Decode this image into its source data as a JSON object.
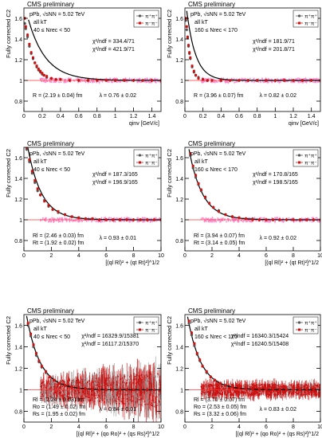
{
  "chart_data": [
    {
      "type": "scatter",
      "header": "CMS preliminary",
      "system": "pPb, √sNN = 5.02 TeV",
      "kt_label": "all kT",
      "mult_label": "40 ≤ Nrec < 50",
      "ylabel": "Fully corrected C2",
      "xlabel": "qinv [GeV/c]",
      "xlim": [
        0,
        1.5
      ],
      "ylim": [
        0.7,
        1.7
      ],
      "xticks": [
        "0",
        "0.2",
        "0.4",
        "0.6",
        "0.8",
        "1",
        "1.2",
        "1.4"
      ],
      "yticks": [
        "0.8",
        "1",
        "1.2",
        "1.4",
        "1.6"
      ],
      "chi2": [
        "χ²/ndf = 334.4/71",
        "χ²/ndf = 421.9/71"
      ],
      "radii": [
        "R = (2.19 ± 0.04) fm"
      ],
      "lambda": "λ = 0.76 ± 0.02",
      "legend": [
        "π⁺π⁺",
        "π⁻π⁻"
      ],
      "fit": {
        "form": "exp",
        "lambda": 0.76,
        "scale": 5.2,
        "cutoff": 0.05
      },
      "series_x": [
        0.01,
        0.02,
        0.04,
        0.06,
        0.08,
        0.1,
        0.12,
        0.14,
        0.16,
        0.18,
        0.2,
        0.22,
        0.25,
        0.3,
        0.35,
        0.4,
        0.5,
        0.6,
        0.7,
        0.8,
        0.9,
        1.0,
        1.1,
        1.2,
        1.3,
        1.4,
        1.5
      ],
      "series": [
        {
          "name": "π⁺π⁺",
          "values": [
            1.55,
            1.5,
            1.42,
            1.33,
            1.26,
            1.21,
            1.17,
            1.13,
            1.1,
            1.08,
            1.06,
            1.05,
            1.03,
            1.02,
            1.01,
            1.01,
            1.0,
            1.0,
            1.0,
            1.0,
            1.0,
            1.0,
            1.0,
            1.0,
            1.0,
            1.0,
            1.0
          ]
        },
        {
          "name": "π⁻π⁻",
          "values": [
            1.6,
            1.52,
            1.44,
            1.35,
            1.27,
            1.22,
            1.17,
            1.14,
            1.11,
            1.09,
            1.07,
            1.05,
            1.04,
            1.02,
            1.01,
            1.01,
            1.0,
            1.0,
            1.0,
            1.0,
            1.0,
            1.0,
            1.0,
            1.0,
            1.0,
            1.0,
            1.0
          ]
        }
      ]
    },
    {
      "type": "scatter",
      "header": "CMS preliminary",
      "system": "pPb, √sNN = 5.02 TeV",
      "kt_label": "all kT",
      "mult_label": "160 ≤ Nrec < 170",
      "ylabel": "Fully corrected C2",
      "xlabel": "qinv [GeV/c]",
      "xlim": [
        0,
        1.5
      ],
      "ylim": [
        0.7,
        1.7
      ],
      "xticks": [
        "0",
        "0.2",
        "0.4",
        "0.6",
        "0.8",
        "1",
        "1.2",
        "1.4"
      ],
      "yticks": [
        "0.8",
        "1",
        "1.2",
        "1.4",
        "1.6"
      ],
      "chi2": [
        "χ²/ndf = 181.9/71",
        "χ²/ndf = 201.8/71"
      ],
      "radii": [
        "R = (3.96 ± 0.07) fm"
      ],
      "lambda": "λ = 0.82 ± 0.02",
      "legend": [
        "π⁺π⁺",
        "π⁻π⁻"
      ],
      "fit": {
        "form": "exp",
        "lambda": 0.82,
        "scale": 10.0,
        "cutoff": 0.02
      },
      "series_x": [
        0.01,
        0.02,
        0.03,
        0.04,
        0.05,
        0.06,
        0.08,
        0.1,
        0.12,
        0.15,
        0.2,
        0.25,
        0.3,
        0.4,
        0.5,
        0.6,
        0.7,
        0.8,
        0.9,
        1.0,
        1.1,
        1.2,
        1.3,
        1.4,
        1.5
      ],
      "series": [
        {
          "name": "π⁺π⁺",
          "values": [
            1.58,
            1.49,
            1.41,
            1.33,
            1.26,
            1.21,
            1.13,
            1.08,
            1.05,
            1.03,
            1.01,
            1.0,
            1.0,
            1.0,
            1.0,
            1.0,
            1.0,
            1.0,
            1.0,
            1.0,
            1.0,
            1.0,
            1.0,
            1.0,
            1.0
          ]
        },
        {
          "name": "π⁻π⁻",
          "values": [
            1.6,
            1.52,
            1.42,
            1.34,
            1.27,
            1.22,
            1.14,
            1.09,
            1.05,
            1.02,
            1.01,
            1.0,
            1.0,
            1.0,
            1.0,
            1.0,
            1.0,
            1.0,
            1.0,
            1.0,
            1.0,
            1.0,
            1.0,
            1.0,
            1.0
          ]
        }
      ]
    },
    {
      "type": "scatter",
      "header": "CMS preliminary",
      "system": "pPb, √sNN = 5.02 TeV",
      "kt_label": "all kT",
      "mult_label": "40 ≤ Nrec < 50",
      "ylabel": "Fully corrected C2",
      "xlabel": "[(ql Rl)² + (qt Rt)²]^1/2",
      "xlim": [
        0,
        10
      ],
      "ylim": [
        0.7,
        1.7
      ],
      "xticks": [
        "0",
        "2",
        "4",
        "6",
        "8",
        "10"
      ],
      "yticks": [
        "0.8",
        "1",
        "1.2",
        "1.4",
        "1.6"
      ],
      "chi2": [
        "χ²/ndf = 187.3/165",
        "χ²/ndf = 196.9/165"
      ],
      "radii": [
        "Rl = (2.46 ± 0.03) fm",
        "Rt = (1.92 ± 0.02) fm"
      ],
      "lambda": "λ = 0.93 ± 0.01",
      "legend": [
        "π⁺π⁺",
        "π⁻π⁻"
      ],
      "fit": {
        "form": "exp",
        "lambda": 0.93,
        "scale": 1.0,
        "cutoff": 0.2
      },
      "series_x": [
        0.2,
        0.4,
        0.6,
        0.8,
        1.0,
        1.2,
        1.5,
        1.8,
        2.1,
        2.5,
        3.0,
        3.5,
        4.0,
        4.5,
        5.0,
        5.5,
        6.0,
        6.5,
        7.0,
        7.5,
        8.0,
        8.5,
        9.0,
        9.5,
        10.0
      ],
      "series": [
        {
          "name": "π⁺π⁺",
          "values": [
            1.68,
            1.56,
            1.45,
            1.36,
            1.28,
            1.24,
            1.19,
            1.13,
            1.1,
            1.07,
            1.05,
            1.03,
            1.02,
            1.01,
            1.01,
            1.0,
            1.0,
            1.0,
            1.0,
            1.0,
            1.0,
            1.0,
            1.0,
            1.0,
            1.0
          ]
        },
        {
          "name": "π⁻π⁻",
          "values": [
            1.7,
            1.58,
            1.47,
            1.38,
            1.3,
            1.24,
            1.18,
            1.14,
            1.1,
            1.08,
            1.05,
            1.03,
            1.02,
            1.01,
            1.01,
            1.0,
            1.0,
            1.0,
            1.0,
            1.0,
            1.0,
            1.0,
            1.0,
            1.0,
            1.0
          ]
        }
      ]
    },
    {
      "type": "scatter",
      "header": "CMS preliminary",
      "system": "pPb, √sNN = 5.02 TeV",
      "kt_label": "all kT",
      "mult_label": "160 ≤ Nrec < 170",
      "ylabel": "Fully corrected C2",
      "xlabel": "[(ql Rl)² + (qt Rt)²]^1/2",
      "xlim": [
        0,
        10
      ],
      "ylim": [
        0.7,
        1.7
      ],
      "xticks": [
        "0",
        "2",
        "4",
        "6",
        "8",
        "10"
      ],
      "yticks": [
        "0.8",
        "1",
        "1.2",
        "1.4",
        "1.6"
      ],
      "chi2": [
        "χ²/ndf = 170.8/165",
        "χ²/ndf = 198.5/165"
      ],
      "radii": [
        "Rl = (3.94 ± 0.07) fm",
        "Rt = (3.14 ± 0.05) fm"
      ],
      "lambda": "λ = 0.92 ± 0.02",
      "legend": [
        "π⁺π⁺",
        "π⁻π⁻"
      ],
      "fit": {
        "form": "exp",
        "lambda": 0.92,
        "scale": 1.0,
        "cutoff": 0.3
      },
      "series_x": [
        0.4,
        0.6,
        0.8,
        1.0,
        1.2,
        1.5,
        1.8,
        2.1,
        2.5,
        3.0,
        3.5,
        4.0,
        4.5,
        5.0,
        5.5,
        6.0,
        6.5,
        7.0,
        7.5,
        8.0,
        8.5,
        9.0,
        9.5,
        10.0
      ],
      "series": [
        {
          "name": "π⁺π⁺",
          "values": [
            1.62,
            1.5,
            1.41,
            1.34,
            1.28,
            1.21,
            1.16,
            1.12,
            1.09,
            1.05,
            1.03,
            1.02,
            1.01,
            1.01,
            1.0,
            1.0,
            1.0,
            1.0,
            1.0,
            1.0,
            1.0,
            1.0,
            1.0,
            1.0
          ]
        },
        {
          "name": "π⁻π⁻",
          "values": [
            1.64,
            1.52,
            1.43,
            1.35,
            1.29,
            1.22,
            1.16,
            1.12,
            1.08,
            1.05,
            1.03,
            1.02,
            1.01,
            1.0,
            1.0,
            1.0,
            1.0,
            1.0,
            1.0,
            1.0,
            1.0,
            1.0,
            1.0,
            1.0
          ]
        }
      ]
    },
    {
      "type": "scatter",
      "header": "CMS preliminary",
      "system": "pPb, √sNN = 5.02 TeV",
      "kt_label": "all kT",
      "mult_label": "40 ≤ Nrec < 50",
      "ylabel": "Fully corrected C2",
      "xlabel": "[(ql Rl)² + (qo Ro)² + (qs Rs)²]^1/2",
      "xlim": [
        0,
        10
      ],
      "ylim": [
        0.7,
        1.7
      ],
      "xticks": [
        "0",
        "2",
        "4",
        "6",
        "8",
        "10"
      ],
      "yticks": [
        "0.8",
        "1",
        "1.2",
        "1.4",
        "1.6"
      ],
      "chi2": [
        "χ²/ndf = 16329.9/15381",
        "χ²/ndf = 16117.2/15370"
      ],
      "radii": [
        "Rl = (2.24 ± 0.03) fm",
        "Ro = (1.49 ± 0.02) fm",
        "Rs = (1.95 ± 0.02) fm"
      ],
      "lambda": "λ = 0.84 ± 0.01",
      "legend": [
        "π⁺π⁺",
        "π⁻π⁻"
      ],
      "fit": {
        "form": "exp",
        "lambda": 0.84,
        "scale": 1.0,
        "cutoff": 0.2
      },
      "series_x": [
        0.3,
        0.5,
        0.7,
        0.9,
        1.1,
        1.3,
        1.6,
        1.9,
        2.2,
        2.6,
        3.0,
        3.5,
        4.0,
        4.5,
        5.0,
        5.5,
        6.0,
        6.5,
        7.0,
        7.5,
        8.0,
        8.5,
        9.0,
        9.5,
        10.0
      ],
      "series": [
        {
          "name": "π⁺π⁺",
          "values": [
            1.6,
            1.5,
            1.4,
            1.32,
            1.26,
            1.21,
            1.16,
            1.12,
            1.09,
            1.06,
            1.04,
            1.03,
            1.02,
            1.01,
            1.0,
            1.0,
            1.0,
            1.0,
            1.0,
            1.0,
            1.0,
            1.0,
            1.0,
            1.0,
            1.0
          ]
        },
        {
          "name": "π⁻π⁻",
          "values": [
            1.62,
            1.52,
            1.42,
            1.34,
            1.27,
            1.22,
            1.17,
            1.12,
            1.09,
            1.06,
            1.04,
            1.03,
            1.02,
            1.01,
            1.0,
            1.0,
            1.0,
            1.0,
            1.0,
            1.0,
            1.0,
            1.0,
            1.0,
            1.0,
            1.0
          ]
        }
      ]
    },
    {
      "type": "scatter",
      "header": "CMS preliminary",
      "system": "pPb, √sNN = 5.02 TeV",
      "kt_label": "all kT",
      "mult_label": "160 ≤ Nrec < 170",
      "ylabel": "Fully corrected C2",
      "xlabel": "[(ql Rl)² + (qo Ro)² + (qs Rs)²]^1/2",
      "xlim": [
        0,
        10
      ],
      "ylim": [
        0.7,
        1.7
      ],
      "xticks": [
        "0",
        "2",
        "4",
        "6",
        "8",
        "10"
      ],
      "yticks": [
        "0.8",
        "1",
        "1.2",
        "1.4",
        "1.6"
      ],
      "chi2": [
        "χ²/ndf = 16340.3/15424",
        "χ²/ndf = 16240.5/15408"
      ],
      "radii": [
        "Rl = (3.70 ± 0.07) fm",
        "Ro = (2.53 ± 0.05) fm",
        "Rs = (3.32 ± 0.06) fm"
      ],
      "lambda": "λ = 0.83 ± 0.02",
      "legend": [
        "π⁺π⁺",
        "π⁻π⁻"
      ],
      "fit": {
        "form": "exp",
        "lambda": 0.83,
        "scale": 1.0,
        "cutoff": 0.2
      },
      "series_x": [
        0.3,
        0.5,
        0.7,
        0.9,
        1.1,
        1.3,
        1.6,
        1.9,
        2.2,
        2.6,
        3.0,
        3.5,
        4.0,
        4.5,
        5.0,
        5.5,
        6.0,
        6.5,
        7.0,
        7.5,
        8.0,
        8.5,
        9.0,
        9.5,
        10.0
      ],
      "series": [
        {
          "name": "π⁺π⁺",
          "values": [
            1.62,
            1.51,
            1.41,
            1.33,
            1.27,
            1.22,
            1.16,
            1.12,
            1.09,
            1.06,
            1.04,
            1.03,
            1.02,
            1.01,
            1.0,
            1.0,
            1.0,
            1.0,
            1.0,
            1.0,
            1.0,
            1.0,
            1.0,
            1.0,
            1.0
          ]
        },
        {
          "name": "π⁻π⁻",
          "values": [
            1.64,
            1.53,
            1.43,
            1.34,
            1.28,
            1.22,
            1.17,
            1.12,
            1.09,
            1.06,
            1.04,
            1.03,
            1.02,
            1.01,
            1.0,
            1.0,
            1.0,
            1.0,
            1.0,
            1.0,
            1.0,
            1.0,
            1.0,
            1.0,
            1.0
          ]
        }
      ]
    }
  ],
  "colors": {
    "pos_series": "#555555",
    "neg_series": "#cc1111",
    "band": "#ff88cc",
    "fit": "#000000",
    "reference": "#ff3333"
  }
}
